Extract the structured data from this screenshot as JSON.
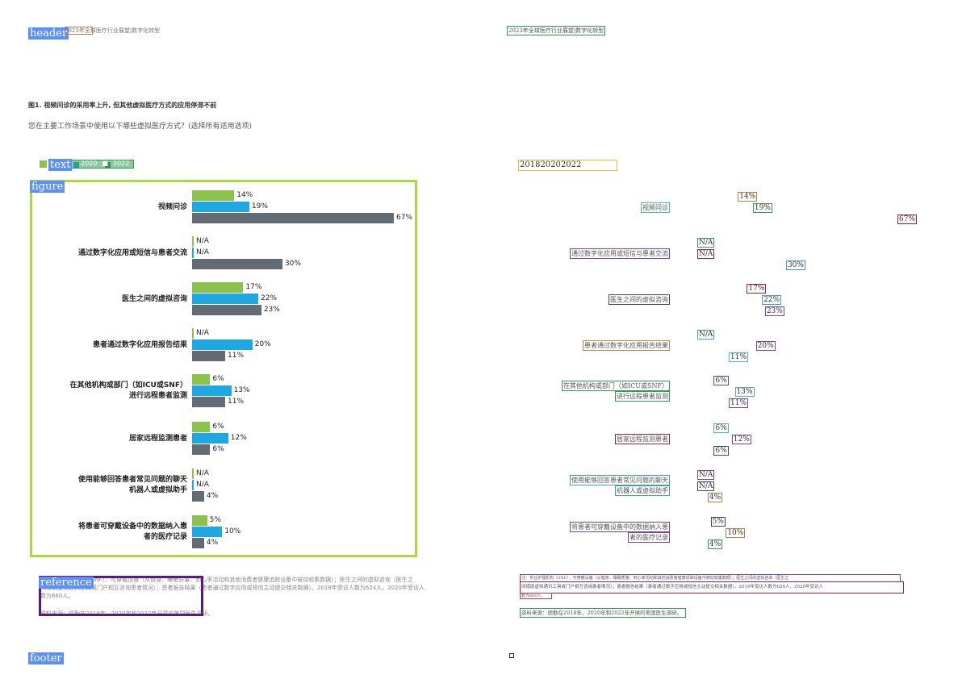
{
  "layout_tags": {
    "header": "header",
    "text": "text",
    "figure": "figure",
    "reference": "reference",
    "footer": "footer"
  },
  "header_text": "2023年全球医疗行业展望|数字化转型",
  "figure_title": "图1. 视频问诊的采用率上升, 但其他虚拟医疗方式的应用停滞不前",
  "question": "您在主要工作场景中使用以下哪些虚拟医疗方式？(选择所有适用选项)",
  "legend": {
    "items": [
      "2018",
      "2020",
      "2022"
    ],
    "ocr_text": "201820202022"
  },
  "colors": {
    "2018": "#8bc34a",
    "2020": "#1ea7e1",
    "2022": "#636b74",
    "frame": "#a8dc3c"
  },
  "chart_data": {
    "type": "bar",
    "orientation": "horizontal",
    "series": [
      {
        "name": "2018",
        "values": [
          14,
          null,
          17,
          null,
          6,
          6,
          null,
          5
        ]
      },
      {
        "name": "2020",
        "values": [
          19,
          null,
          22,
          20,
          13,
          12,
          null,
          10
        ]
      },
      {
        "name": "2022",
        "values": [
          67,
          30,
          23,
          11,
          11,
          6,
          4,
          4
        ]
      }
    ],
    "categories": [
      [
        "视频问诊"
      ],
      [
        "通过数字化应用或短信与患者交流"
      ],
      [
        "医生之间的虚拟咨询"
      ],
      [
        "患者通过数字化应用报告结果"
      ],
      [
        "在其他机构或部门（如ICU或SNF）",
        "进行远程患者监测"
      ],
      [
        "居家远程监测患者"
      ],
      [
        "使用能够回答患者常见问题的聊天",
        "机器人或虚拟助手"
      ],
      [
        "将患者可穿戴设备中的数据纳入患",
        "者的医疗记录"
      ]
    ],
    "labels": [
      [
        "14%",
        "19%",
        "67%"
      ],
      [
        "N/A",
        "N/A",
        "30%"
      ],
      [
        "17%",
        "22%",
        "23%"
      ],
      [
        "N/A",
        "20%",
        "11%"
      ],
      [
        "6%",
        "13%",
        "11%"
      ],
      [
        "6%",
        "12%",
        "6%"
      ],
      [
        "N/A",
        "N/A",
        "4%"
      ],
      [
        "5%",
        "10%",
        "4%"
      ]
    ],
    "xlim": [
      0,
      67
    ]
  },
  "reference": {
    "line1": "注：专业护理机构（SNF），可穿戴设备（从健身、睡眠质量、到心率活动和其他消费者健康追踪设备中被动收集数据）；医生之间的虚拟咨询（医生之",
    "line2": "间借助虚拟通讯工具或门户相互咨询患者情况）；患者报告结果（患者通过数字应用或短信主动提交相关数据）。2018年受访人数为624人，2020年受访人",
    "line3": "数为660人。",
    "source": "资料来源：德勤在2018年、2020年和2022年开展的美国医生调研。"
  },
  "ocr": {
    "header": "2023年全球医疗行业展望|数字化转型",
    "legend": "201820202022",
    "labels": [
      "视频问诊",
      "14%",
      "19%",
      "67%",
      "通过数字化应用或短信与患者交流",
      "N/A",
      "N/A",
      "30%",
      "医生之间的虚拟咨询",
      "17%",
      "22%",
      "23%",
      "患者通过数字化应用报告结果",
      "N/A",
      "20%",
      "11%",
      "在其他机构或部门（如ICU或SNF）",
      "进行远程患者监测",
      "6%",
      "13%",
      "11%",
      "居家远程监测患者",
      "6%",
      "12%",
      "6%",
      "使用能够回答患者常见问题的聊天",
      "机器人或虚拟助手",
      "N/A",
      "N/A",
      "4%",
      "将患者可穿戴设备中的数据纳入患",
      "者的医疗记录",
      "5%",
      "10%",
      "4%"
    ],
    "reference": [
      "注：专业护理机构（SNF），可穿戴设备（从健身、睡眠质量、到心率活动和其他消费者健康追踪设备中被动收集数据）；医生之间的虚拟咨询（医生之",
      "间借助虚拟通讯工具或门户相互咨询患者情况）；患者报告结果（患者通过数字应用或短信主动提交相关数据）。2018年受访人数为624人，2020年受访人",
      "数为660人。",
      "资料来源：德勤在2018年、2020年和2022年开展的美国医生调研。"
    ]
  }
}
